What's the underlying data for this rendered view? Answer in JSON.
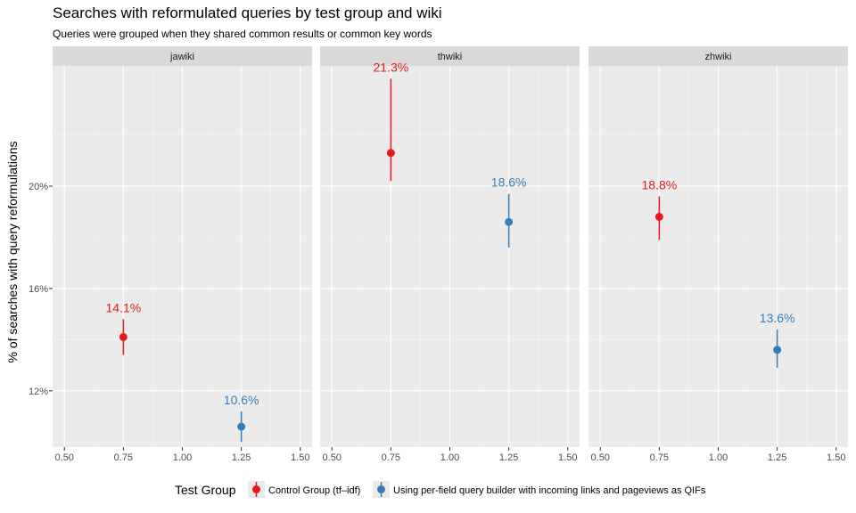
{
  "chart_data": {
    "type": "scatter",
    "title": "Searches with reformulated queries by test group and wiki",
    "subtitle": "Queries were grouped when they shared common results or common key words",
    "ylabel": "% of searches with query reformulations",
    "xlabel": "",
    "xlim": [
      0.45,
      1.55
    ],
    "ylim": [
      9.8,
      24.7
    ],
    "x_ticks": [
      0.5,
      0.75,
      1.0,
      1.25,
      1.5
    ],
    "x_tick_labels": [
      "0.50",
      "0.75",
      "1.00",
      "1.25",
      "1.50"
    ],
    "y_ticks": [
      12,
      16,
      20
    ],
    "y_tick_labels": [
      "12%",
      "16%",
      "20%"
    ],
    "grid": true,
    "legend": {
      "title": "Test Group",
      "position": "bottom",
      "entries": [
        {
          "name": "Control Group (tf–idf)",
          "color": "#E41A1C"
        },
        {
          "name": "Using per-field query builder with incoming links and pageviews as QIFs",
          "color": "#377EB8"
        }
      ]
    },
    "facets": [
      {
        "name": "jawiki",
        "points": [
          {
            "group": 0,
            "x": 0.75,
            "y": 14.1,
            "ymin": 13.4,
            "ymax": 14.8,
            "label": "14.1%"
          },
          {
            "group": 1,
            "x": 1.25,
            "y": 10.6,
            "ymin": 10.0,
            "ymax": 11.2,
            "label": "10.6%"
          }
        ]
      },
      {
        "name": "thwiki",
        "points": [
          {
            "group": 0,
            "x": 0.75,
            "y": 21.3,
            "ymin": 20.2,
            "ymax": 24.2,
            "label": "21.3%"
          },
          {
            "group": 1,
            "x": 1.25,
            "y": 18.6,
            "ymin": 17.6,
            "ymax": 19.7,
            "label": "18.6%"
          }
        ]
      },
      {
        "name": "zhwiki",
        "points": [
          {
            "group": 0,
            "x": 0.75,
            "y": 18.8,
            "ymin": 17.9,
            "ymax": 19.6,
            "label": "18.8%"
          },
          {
            "group": 1,
            "x": 1.25,
            "y": 13.6,
            "ymin": 12.9,
            "ymax": 14.4,
            "label": "13.6%"
          }
        ]
      }
    ]
  }
}
